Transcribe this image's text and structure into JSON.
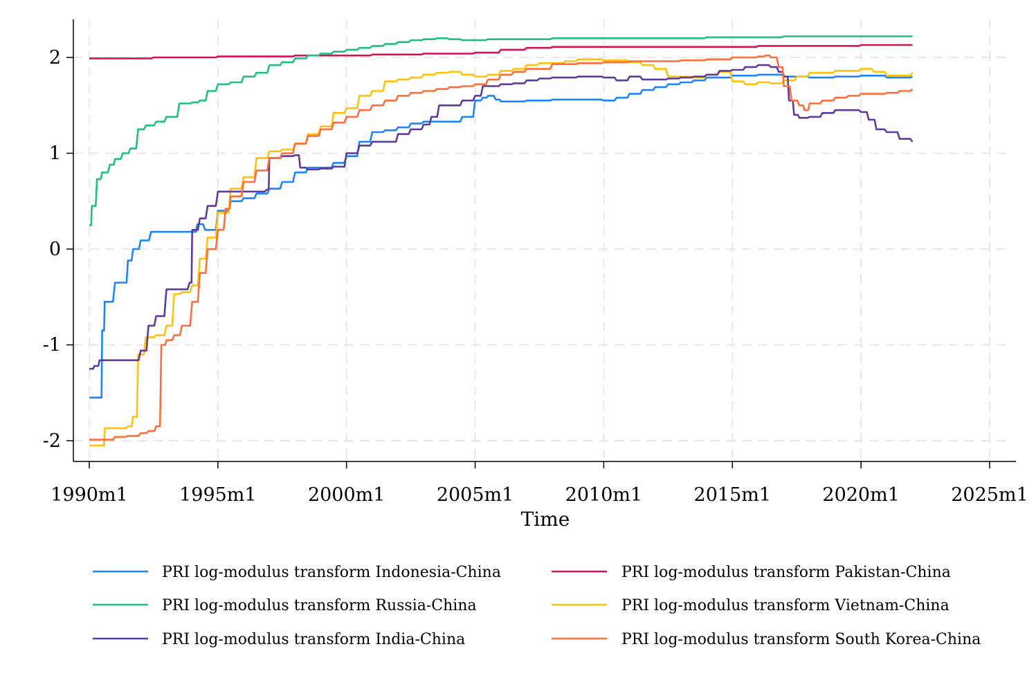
{
  "chart_data": {
    "type": "line",
    "title": "",
    "xlabel": "Time",
    "ylabel": "",
    "xlim": [
      1990.0,
      2025.0
    ],
    "ylim": [
      -2.2,
      2.4
    ],
    "grid": true,
    "legend_position": "bottom",
    "x_ticks": [
      {
        "value": 1990,
        "label": "1990m1"
      },
      {
        "value": 1995,
        "label": "1995m1"
      },
      {
        "value": 2000,
        "label": "2000m1"
      },
      {
        "value": 2005,
        "label": "2005m1"
      },
      {
        "value": 2010,
        "label": "2010m1"
      },
      {
        "value": 2015,
        "label": "2015m1"
      },
      {
        "value": 2020,
        "label": "2020m1"
      },
      {
        "value": 2025,
        "label": "2025m1"
      }
    ],
    "y_ticks": [
      {
        "value": 2,
        "label": "2"
      },
      {
        "value": 1,
        "label": "1"
      },
      {
        "value": 0,
        "label": "0"
      },
      {
        "value": -1,
        "label": "-1"
      },
      {
        "value": -2,
        "label": "-2"
      }
    ],
    "series": [
      {
        "name": "PRI log-modulus transform Indonesia-China",
        "color": "#1a85ff",
        "x": [
          1990.0,
          1990.4,
          1990.5,
          1990.6,
          1991.0,
          1991.3,
          1991.5,
          1991.7,
          1992.0,
          1992.4,
          1993.0,
          1993.5,
          1994.0,
          1994.2,
          1994.5,
          1995.0,
          1995.5,
          1996.0,
          1996.5,
          1997.0,
          1997.5,
          1998.0,
          1998.5,
          1999.0,
          1999.5,
          2000.0,
          2000.5,
          2001.0,
          2001.5,
          2002.0,
          2002.5,
          2003.0,
          2003.5,
          2004.0,
          2004.5,
          2005.0,
          2005.3,
          2005.5,
          2005.8,
          2006.0,
          2007.0,
          2008.0,
          2009.0,
          2010.0,
          2010.5,
          2011.0,
          2011.5,
          2012.0,
          2012.5,
          2013.0,
          2013.5,
          2014.0,
          2015.0,
          2016.0,
          2017.0,
          2018.0,
          2019.0,
          2020.0,
          2021.0,
          2022.0
        ],
        "values": [
          -1.55,
          -1.55,
          -0.85,
          -0.55,
          -0.35,
          -0.35,
          -0.12,
          0.0,
          0.09,
          0.18,
          0.18,
          0.18,
          0.18,
          0.26,
          0.2,
          0.4,
          0.5,
          0.53,
          0.58,
          0.63,
          0.7,
          0.8,
          0.85,
          0.85,
          0.9,
          0.97,
          1.12,
          1.22,
          1.24,
          1.27,
          1.31,
          1.33,
          1.33,
          1.33,
          1.38,
          1.55,
          1.58,
          1.6,
          1.56,
          1.54,
          1.55,
          1.56,
          1.56,
          1.55,
          1.58,
          1.62,
          1.66,
          1.69,
          1.72,
          1.74,
          1.76,
          1.79,
          1.81,
          1.82,
          1.8,
          1.79,
          1.8,
          1.81,
          1.79,
          1.8
        ]
      },
      {
        "name": "PRI log-modulus transform Pakistan-China",
        "color": "#d41159",
        "x": [
          1990.0,
          1991.0,
          1992.0,
          1992.5,
          1993.0,
          1994.0,
          1995.0,
          1996.0,
          1997.0,
          1998.0,
          1999.0,
          2000.0,
          2001.0,
          2002.0,
          2003.0,
          2004.0,
          2005.0,
          2006.0,
          2007.0,
          2008.0,
          2009.0,
          2010.0,
          2011.0,
          2012.0,
          2013.0,
          2014.0,
          2015.0,
          2016.0,
          2017.0,
          2018.0,
          2019.0,
          2020.0,
          2021.0,
          2022.0
        ],
        "values": [
          1.99,
          1.99,
          1.99,
          2.0,
          2.0,
          2.0,
          2.01,
          2.01,
          2.01,
          2.02,
          2.02,
          2.02,
          2.03,
          2.03,
          2.04,
          2.04,
          2.05,
          2.08,
          2.1,
          2.11,
          2.11,
          2.11,
          2.11,
          2.11,
          2.11,
          2.11,
          2.11,
          2.12,
          2.12,
          2.12,
          2.12,
          2.13,
          2.13,
          2.13
        ]
      },
      {
        "name": "PRI log-modulus transform Russia-China",
        "color": "#1fbf7f",
        "x": [
          1990.0,
          1990.1,
          1990.3,
          1990.5,
          1990.8,
          1991.0,
          1991.3,
          1991.6,
          1991.9,
          1992.2,
          1992.6,
          1993.0,
          1993.5,
          1994.0,
          1994.3,
          1994.6,
          1995.0,
          1995.5,
          1996.0,
          1996.5,
          1997.0,
          1997.5,
          1998.0,
          1998.5,
          1999.0,
          1999.5,
          2000.0,
          2000.5,
          2001.0,
          2001.5,
          2002.0,
          2002.5,
          2003.0,
          2003.5,
          2004.0,
          2004.5,
          2005.0,
          2005.5,
          2006.0,
          2007.0,
          2008.0,
          2009.0,
          2010.0,
          2011.0,
          2012.0,
          2013.0,
          2014.0,
          2015.0,
          2016.0,
          2017.0,
          2018.0,
          2019.0,
          2020.0,
          2021.0,
          2022.0
        ],
        "values": [
          0.25,
          0.45,
          0.73,
          0.8,
          0.88,
          0.94,
          1.0,
          1.05,
          1.25,
          1.29,
          1.33,
          1.38,
          1.52,
          1.53,
          1.55,
          1.65,
          1.72,
          1.74,
          1.8,
          1.84,
          1.92,
          1.95,
          1.99,
          2.02,
          2.04,
          2.06,
          2.08,
          2.1,
          2.12,
          2.14,
          2.16,
          2.18,
          2.19,
          2.2,
          2.19,
          2.18,
          2.18,
          2.19,
          2.19,
          2.19,
          2.2,
          2.2,
          2.2,
          2.2,
          2.2,
          2.2,
          2.21,
          2.21,
          2.21,
          2.22,
          2.22,
          2.22,
          2.22,
          2.22,
          2.22
        ]
      },
      {
        "name": "PRI log-modulus transform Vietnam-China",
        "color": "#ffc20a",
        "x": [
          1990.0,
          1990.5,
          1990.6,
          1991.0,
          1991.5,
          1991.7,
          1991.9,
          1992.2,
          1992.6,
          1993.0,
          1993.3,
          1993.6,
          1994.0,
          1994.3,
          1994.6,
          1995.0,
          1995.5,
          1996.0,
          1996.5,
          1997.0,
          1997.5,
          1998.0,
          1998.5,
          1999.0,
          1999.5,
          2000.0,
          2000.5,
          2001.0,
          2001.5,
          2002.0,
          2002.5,
          2003.0,
          2003.5,
          2004.0,
          2004.5,
          2005.0,
          2005.5,
          2006.0,
          2006.5,
          2007.0,
          2007.5,
          2008.0,
          2008.5,
          2009.0,
          2010.0,
          2011.0,
          2011.5,
          2012.0,
          2012.5,
          2013.0,
          2013.5,
          2014.0,
          2014.5,
          2015.0,
          2015.5,
          2016.0,
          2016.5,
          2017.0,
          2017.5,
          2018.0,
          2019.0,
          2020.0,
          2020.5,
          2021.0,
          2022.0
        ],
        "values": [
          -2.05,
          -2.05,
          -1.87,
          -1.87,
          -1.85,
          -1.75,
          -1.1,
          -0.92,
          -0.9,
          -0.8,
          -0.47,
          -0.45,
          -0.38,
          -0.1,
          0.12,
          0.38,
          0.63,
          0.75,
          0.95,
          1.02,
          1.04,
          1.1,
          1.2,
          1.28,
          1.42,
          1.47,
          1.6,
          1.65,
          1.75,
          1.77,
          1.79,
          1.82,
          1.84,
          1.85,
          1.82,
          1.8,
          1.82,
          1.86,
          1.88,
          1.92,
          1.94,
          1.94,
          1.96,
          1.98,
          1.97,
          1.95,
          1.92,
          1.88,
          1.8,
          1.8,
          1.79,
          1.82,
          1.85,
          1.75,
          1.72,
          1.74,
          1.73,
          1.76,
          1.8,
          1.84,
          1.86,
          1.88,
          1.85,
          1.81,
          1.84
        ]
      },
      {
        "name": "PRI log-modulus transform India-China",
        "color": "#5d3a9b",
        "x": [
          1990.0,
          1990.2,
          1990.4,
          1991.0,
          1991.5,
          1992.0,
          1992.3,
          1992.6,
          1993.0,
          1993.5,
          1993.9,
          1994.0,
          1994.3,
          1994.6,
          1995.0,
          1995.5,
          1996.0,
          1996.5,
          1996.9,
          1997.0,
          1997.5,
          1998.0,
          1998.2,
          1998.5,
          1999.0,
          1999.5,
          2000.0,
          2000.5,
          2001.0,
          2001.5,
          2002.0,
          2002.5,
          2003.0,
          2003.3,
          2003.6,
          2004.0,
          2004.5,
          2005.0,
          2005.3,
          2006.0,
          2006.5,
          2007.0,
          2007.5,
          2008.0,
          2009.0,
          2010.0,
          2010.5,
          2011.0,
          2011.5,
          2012.0,
          2012.5,
          2013.0,
          2013.5,
          2014.0,
          2014.5,
          2015.0,
          2015.5,
          2016.0,
          2016.5,
          2016.8,
          2017.0,
          2017.2,
          2017.4,
          2017.6,
          2018.0,
          2018.5,
          2019.0,
          2019.5,
          2020.0,
          2020.3,
          2020.6,
          2021.0,
          2021.5,
          2022.0
        ],
        "values": [
          -1.25,
          -1.22,
          -1.16,
          -1.16,
          -1.16,
          -1.06,
          -0.8,
          -0.7,
          -0.42,
          -0.42,
          -0.35,
          0.2,
          0.32,
          0.45,
          0.6,
          0.6,
          0.6,
          0.6,
          0.62,
          0.95,
          0.97,
          0.98,
          0.85,
          0.83,
          0.84,
          0.86,
          1.0,
          1.08,
          1.12,
          1.12,
          1.2,
          1.25,
          1.3,
          1.38,
          1.5,
          1.5,
          1.55,
          1.6,
          1.7,
          1.72,
          1.73,
          1.76,
          1.78,
          1.79,
          1.8,
          1.79,
          1.76,
          1.8,
          1.77,
          1.77,
          1.78,
          1.79,
          1.8,
          1.82,
          1.86,
          1.87,
          1.9,
          1.92,
          1.9,
          1.85,
          1.8,
          1.55,
          1.4,
          1.37,
          1.38,
          1.42,
          1.45,
          1.45,
          1.43,
          1.35,
          1.25,
          1.22,
          1.15,
          1.12
        ]
      },
      {
        "name": "PRI log-modulus transform South Korea-China",
        "color": "#fe6e3a",
        "x": [
          1990.0,
          1990.5,
          1991.0,
          1991.5,
          1992.0,
          1992.3,
          1992.6,
          1992.8,
          1993.0,
          1993.3,
          1993.6,
          1994.0,
          1994.3,
          1994.6,
          1995.0,
          1995.3,
          1995.5,
          1996.0,
          1996.5,
          1997.0,
          1997.5,
          1998.0,
          1998.5,
          1999.0,
          1999.5,
          2000.0,
          2000.5,
          2001.0,
          2001.5,
          2002.0,
          2002.5,
          2003.0,
          2003.5,
          2004.0,
          2004.5,
          2005.0,
          2005.5,
          2006.0,
          2006.5,
          2007.0,
          2008.0,
          2009.0,
          2010.0,
          2011.0,
          2012.0,
          2013.0,
          2014.0,
          2015.0,
          2016.0,
          2016.3,
          2016.5,
          2016.8,
          2017.0,
          2017.3,
          2017.6,
          2017.8,
          2018.0,
          2018.5,
          2019.0,
          2019.5,
          2020.0,
          2021.0,
          2021.5,
          2022.0
        ],
        "values": [
          -1.99,
          -1.99,
          -1.96,
          -1.95,
          -1.92,
          -1.9,
          -1.85,
          -1.0,
          -0.95,
          -0.9,
          -0.8,
          -0.55,
          -0.25,
          0.0,
          0.2,
          0.42,
          0.55,
          0.7,
          0.82,
          0.95,
          1.0,
          1.1,
          1.18,
          1.25,
          1.32,
          1.38,
          1.45,
          1.5,
          1.55,
          1.6,
          1.63,
          1.65,
          1.67,
          1.69,
          1.7,
          1.72,
          1.77,
          1.82,
          1.85,
          1.88,
          1.93,
          1.94,
          1.95,
          1.96,
          1.96,
          1.97,
          1.98,
          2.0,
          2.01,
          2.02,
          2.0,
          1.9,
          1.7,
          1.55,
          1.5,
          1.45,
          1.52,
          1.55,
          1.58,
          1.6,
          1.62,
          1.63,
          1.65,
          1.67
        ]
      }
    ]
  }
}
